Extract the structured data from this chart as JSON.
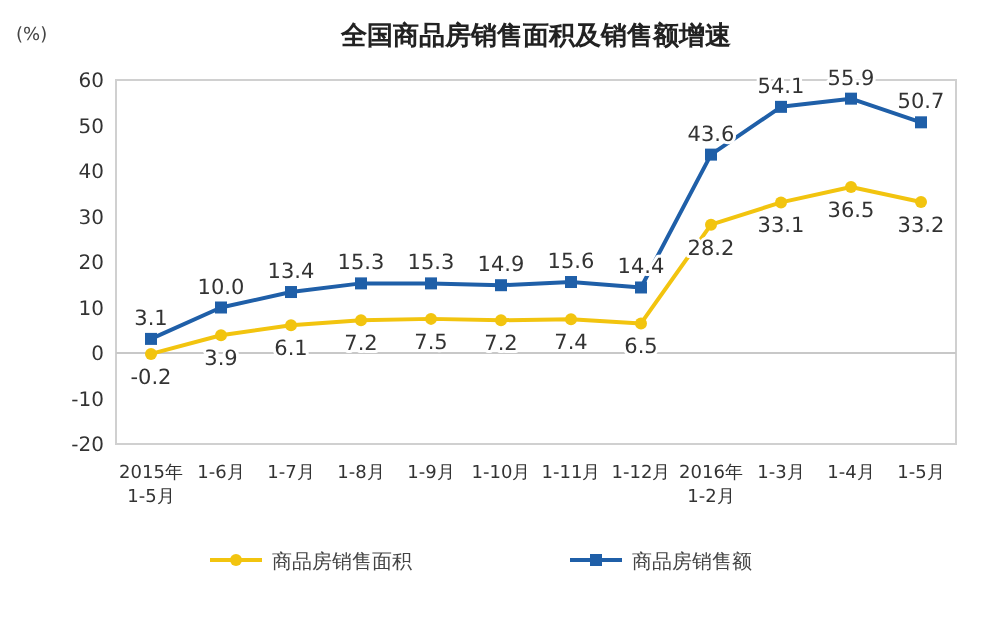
{
  "chart_data": {
    "type": "line",
    "title": "全国商品房销售面积及销售额增速",
    "ylabel": "(%)",
    "categories": [
      "2015年 1-5月",
      "1-6月",
      "1-7月",
      "1-8月",
      "1-9月",
      "1-10月",
      "1-11月",
      "1-12月",
      "2016年 1-2月",
      "1-3月",
      "1-4月",
      "1-5月"
    ],
    "series": [
      {
        "name": "商品房销售面积",
        "color": "#f2c40f",
        "marker": "circle",
        "values": [
          -0.2,
          3.9,
          6.1,
          7.2,
          7.5,
          7.2,
          7.4,
          6.5,
          28.2,
          33.1,
          36.5,
          33.2
        ],
        "value_labels": [
          "-0.2",
          "3.9",
          "6.1",
          "7.2",
          "7.5",
          "7.2",
          "7.4",
          "6.5",
          "28.2",
          "33.1",
          "36.5",
          "33.2"
        ]
      },
      {
        "name": "商品房销售额",
        "color": "#1f5fa8",
        "marker": "square",
        "values": [
          3.1,
          10.0,
          13.4,
          15.3,
          15.3,
          14.9,
          15.6,
          14.4,
          43.6,
          54.1,
          55.9,
          50.7
        ],
        "value_labels": [
          "3.1",
          "10.0",
          "13.4",
          "15.3",
          "15.3",
          "14.9",
          "15.6",
          "14.4",
          "43.6",
          "54.1",
          "55.9",
          "50.7"
        ]
      }
    ],
    "ylim": [
      -20,
      60
    ],
    "yticks": [
      -20,
      -10,
      0,
      10,
      20,
      30,
      40,
      50,
      60
    ],
    "legend": "bottom",
    "ref_lines": [
      {
        "axis": "y",
        "value": 0,
        "color": "#c8c8c8"
      }
    ]
  }
}
